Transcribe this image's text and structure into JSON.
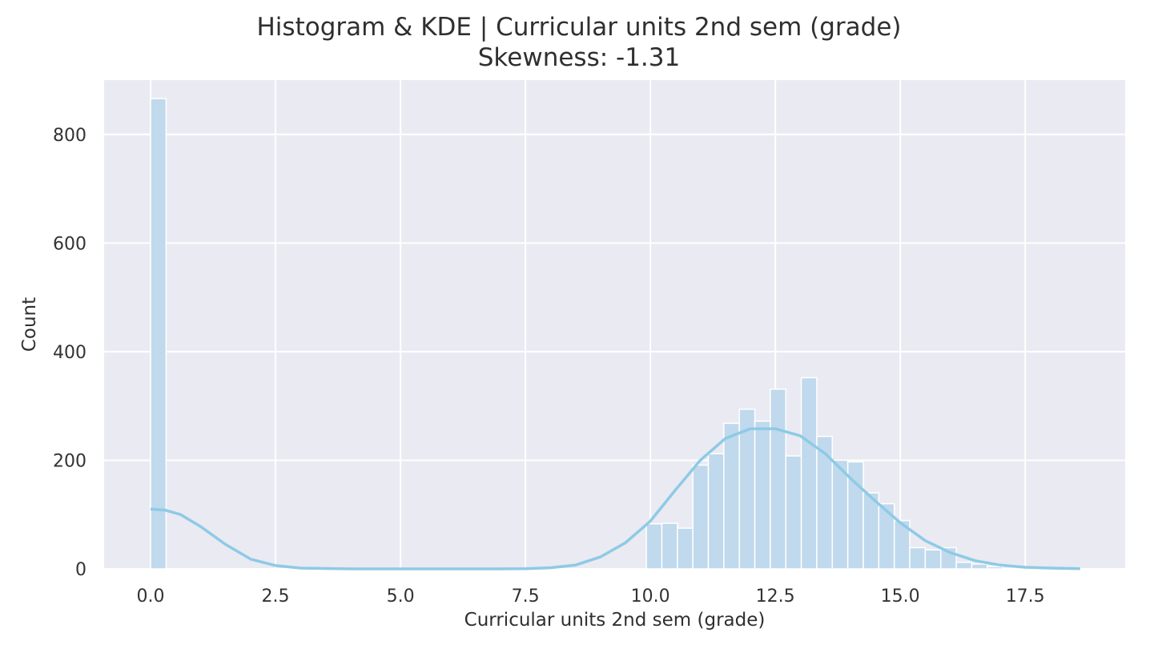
{
  "chart_data": {
    "type": "bar",
    "title": "Histogram & KDE | Curricular units 2nd sem (grade)",
    "subtitle": "Skewness: -1.31",
    "xlabel": "Curricular units 2nd sem (grade)",
    "ylabel": "Count",
    "xlim": [
      -0.93,
      19.5
    ],
    "ylim": [
      0,
      900
    ],
    "x_ticks": [
      "0.0",
      "2.5",
      "5.0",
      "7.5",
      "10.0",
      "12.5",
      "15.0",
      "17.5"
    ],
    "y_ticks": [
      "0",
      "200",
      "400",
      "600",
      "800"
    ],
    "grid": true,
    "bin_width": 0.31,
    "bins": [
      {
        "x": 0.0,
        "count": 866
      },
      {
        "x": 9.92,
        "count": 83
      },
      {
        "x": 10.23,
        "count": 84
      },
      {
        "x": 10.54,
        "count": 75
      },
      {
        "x": 10.85,
        "count": 191
      },
      {
        "x": 11.16,
        "count": 212
      },
      {
        "x": 11.47,
        "count": 268
      },
      {
        "x": 11.78,
        "count": 294
      },
      {
        "x": 12.09,
        "count": 272
      },
      {
        "x": 12.4,
        "count": 331
      },
      {
        "x": 12.71,
        "count": 208
      },
      {
        "x": 13.02,
        "count": 352
      },
      {
        "x": 13.33,
        "count": 244
      },
      {
        "x": 13.64,
        "count": 200
      },
      {
        "x": 13.95,
        "count": 197
      },
      {
        "x": 14.26,
        "count": 140
      },
      {
        "x": 14.57,
        "count": 120
      },
      {
        "x": 14.88,
        "count": 89
      },
      {
        "x": 15.19,
        "count": 39
      },
      {
        "x": 15.5,
        "count": 35
      },
      {
        "x": 15.81,
        "count": 39
      },
      {
        "x": 16.12,
        "count": 12
      },
      {
        "x": 16.43,
        "count": 9
      },
      {
        "x": 16.74,
        "count": 4
      },
      {
        "x": 17.05,
        "count": 1
      },
      {
        "x": 17.36,
        "count": 2
      },
      {
        "x": 17.67,
        "count": 1
      },
      {
        "x": 17.98,
        "count": 1
      }
    ],
    "kde": {
      "x": [
        0.0,
        0.3,
        0.6,
        1.0,
        1.5,
        2.0,
        2.5,
        3.0,
        4.0,
        5.0,
        6.0,
        7.0,
        7.5,
        8.0,
        8.5,
        9.0,
        9.5,
        10.0,
        10.5,
        11.0,
        11.5,
        12.0,
        12.5,
        13.0,
        13.5,
        14.0,
        14.5,
        15.0,
        15.5,
        16.0,
        16.5,
        17.0,
        17.5,
        18.0,
        18.6
      ],
      "y": [
        110,
        108,
        100,
        78,
        45,
        18,
        6,
        1.5,
        0,
        0,
        0,
        0,
        0.5,
        2,
        7,
        22,
        48,
        88,
        145,
        200,
        240,
        258,
        258,
        245,
        212,
        167,
        125,
        85,
        52,
        30,
        15,
        7,
        3,
        1.5,
        0.5
      ]
    },
    "colors": {
      "bar_fill": "#c0d9ec",
      "bar_edge": "#ffffff",
      "kde_line": "#8ecae6",
      "plot_bg": "#eaeaf2",
      "grid": "#ffffff"
    }
  }
}
